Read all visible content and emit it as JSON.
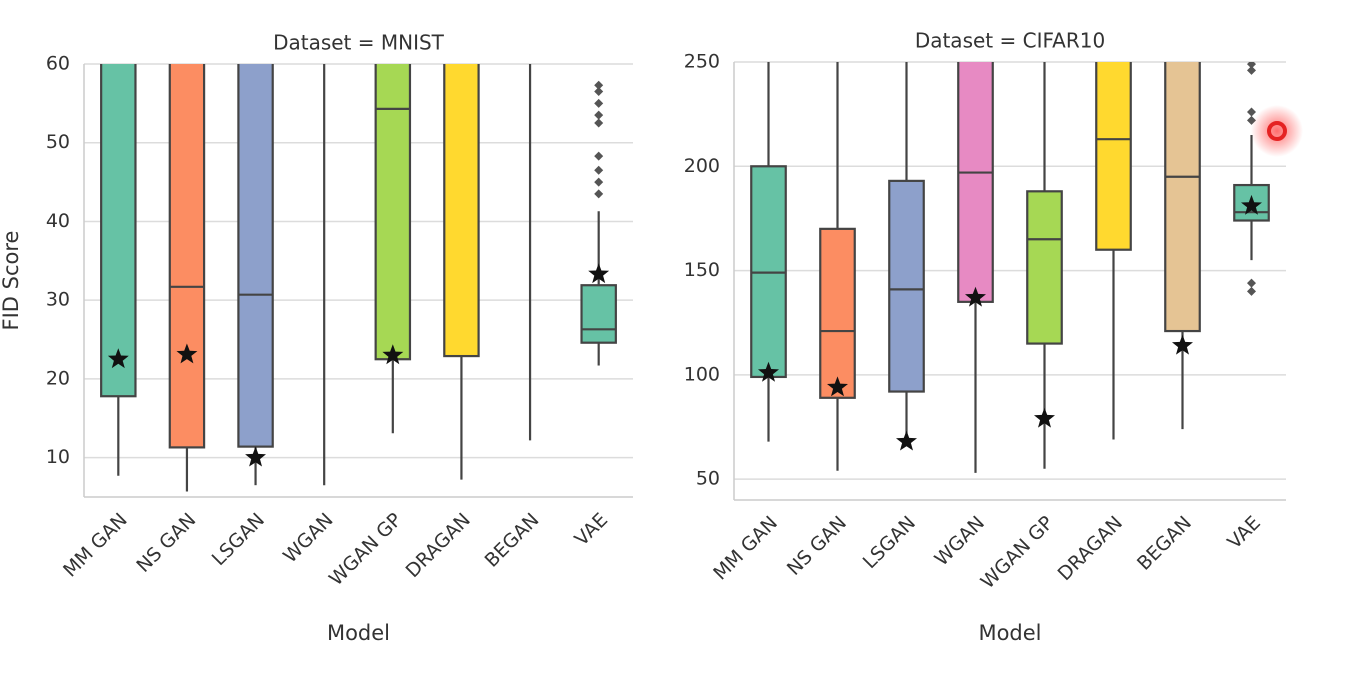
{
  "chart_data": [
    {
      "type": "box",
      "title": "Dataset = MNIST",
      "xlabel": "Model",
      "ylabel": "FID Score",
      "categories": [
        "MM GAN",
        "NS GAN",
        "LSGAN",
        "WGAN",
        "WGAN GP",
        "DRAGAN",
        "BEGAN",
        "VAE"
      ],
      "colors": [
        "#66c2a5",
        "#fc8d62",
        "#8da0cb",
        "#e78ac3",
        "#a6d854",
        "#ffd92f",
        "#e5c494",
        "#66c2a5"
      ],
      "whisker_low": [
        7.7,
        5.7,
        6.5,
        6.5,
        13.1,
        7.2,
        12.2,
        21.7
      ],
      "q1": [
        17.8,
        11.3,
        11.4,
        null,
        22.5,
        22.9,
        null,
        24.6
      ],
      "median": [
        null,
        31.7,
        30.7,
        null,
        54.3,
        null,
        null,
        26.3
      ],
      "q3": [
        null,
        null,
        null,
        null,
        null,
        null,
        null,
        31.9
      ],
      "whisker_high": [
        null,
        null,
        null,
        null,
        null,
        null,
        null,
        41.3
      ],
      "best": [
        22.5,
        23.1,
        10,
        null,
        23,
        null,
        null,
        33.3
      ],
      "outliers": [
        [],
        [],
        [],
        [],
        [],
        [],
        [],
        [
          43.5,
          45,
          46.5,
          48.3,
          52.5,
          53.5,
          55,
          56.5,
          57.3
        ]
      ],
      "ylim": [
        5,
        60
      ],
      "yticks": [
        10,
        20,
        30,
        40,
        50,
        60
      ],
      "grid": true
    },
    {
      "type": "box",
      "title": "Dataset = CIFAR10",
      "xlabel": "Model",
      "categories": [
        "MM GAN",
        "NS GAN",
        "LSGAN",
        "WGAN",
        "WGAN GP",
        "DRAGAN",
        "BEGAN",
        "VAE"
      ],
      "colors": [
        "#66c2a5",
        "#fc8d62",
        "#8da0cb",
        "#e78ac3",
        "#a6d854",
        "#ffd92f",
        "#e5c494",
        "#66c2a5"
      ],
      "whisker_low": [
        68,
        54,
        67,
        53,
        55,
        69,
        74,
        155
      ],
      "q1": [
        99,
        89,
        92,
        135,
        115,
        160,
        121,
        174
      ],
      "median": [
        149,
        121,
        141,
        197,
        165,
        213,
        195,
        178
      ],
      "q3": [
        200,
        170,
        193,
        null,
        188,
        null,
        null,
        191
      ],
      "whisker_high": [
        null,
        null,
        null,
        null,
        null,
        null,
        null,
        215
      ],
      "best": [
        101,
        94,
        68,
        137,
        79,
        null,
        114,
        181
      ],
      "outliers": [
        [],
        [],
        [],
        [],
        [],
        [],
        [],
        [
          140,
          144,
          222,
          226,
          246,
          249
        ]
      ],
      "ylim": [
        40,
        250
      ],
      "yticks": [
        50,
        100,
        150,
        200,
        250
      ],
      "grid": true
    }
  ]
}
